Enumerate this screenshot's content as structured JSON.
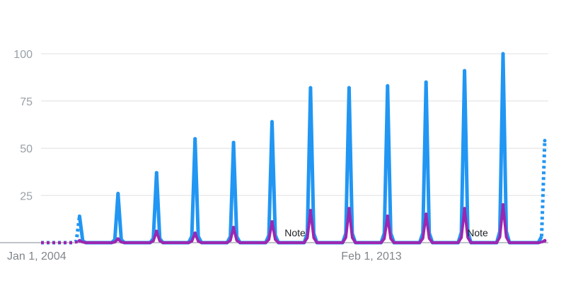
{
  "chart_data": {
    "type": "line",
    "title": "",
    "xlabel": "",
    "ylabel": "",
    "ylim": [
      0,
      100
    ],
    "grid": true,
    "y_ticks": [
      "25",
      "50",
      "75",
      "100"
    ],
    "x_tick_labels": [
      "Jan 1, 2004",
      "Feb 1, 2013"
    ],
    "annotations": [
      "Note",
      "Note"
    ],
    "series": [
      {
        "color": "#2196f3",
        "peaks": [
          {
            "x": "Jan 2005",
            "value": 14
          },
          {
            "x": "Jan 2006",
            "value": 26
          },
          {
            "x": "Jan 2007",
            "value": 37
          },
          {
            "x": "Jan 2008",
            "value": 55
          },
          {
            "x": "Jan 2009",
            "value": 53
          },
          {
            "x": "Jan 2010",
            "value": 64
          },
          {
            "x": "Jan 2011",
            "value": 82
          },
          {
            "x": "Jan 2012",
            "value": 82
          },
          {
            "x": "Jan 2013",
            "value": 83
          },
          {
            "x": "Jan 2014",
            "value": 85
          },
          {
            "x": "Jan 2015",
            "value": 91
          },
          {
            "x": "Jan 2016",
            "value": 100
          },
          {
            "x": "Feb 2017",
            "value": 54
          }
        ]
      },
      {
        "color": "#9c27b0",
        "peaks": [
          {
            "x": "Jan 2005",
            "value": 1
          },
          {
            "x": "Jan 2006",
            "value": 2
          },
          {
            "x": "Jan 2007",
            "value": 6
          },
          {
            "x": "Jan 2008",
            "value": 5
          },
          {
            "x": "Jan 2009",
            "value": 8
          },
          {
            "x": "Jan 2010",
            "value": 11
          },
          {
            "x": "Jan 2011",
            "value": 17
          },
          {
            "x": "Jan 2012",
            "value": 18
          },
          {
            "x": "Jan 2013",
            "value": 14
          },
          {
            "x": "Jan 2014",
            "value": 15
          },
          {
            "x": "Jan 2015",
            "value": 18
          },
          {
            "x": "Jan 2016",
            "value": 20
          },
          {
            "x": "Feb 2017",
            "value": 1
          }
        ]
      }
    ]
  }
}
